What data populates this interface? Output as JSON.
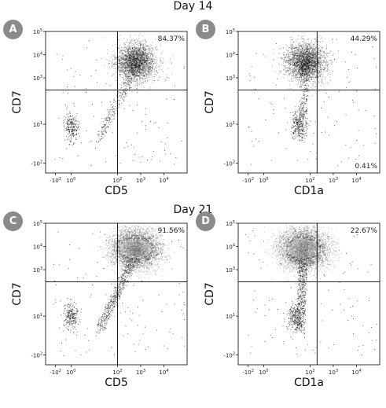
{
  "titles": {
    "day14": "Day 14",
    "day21": "Day 21"
  },
  "chart_data": [
    {
      "type": "scatter",
      "panel": "A",
      "xlabel": "CD5",
      "ylabel": "CD7",
      "axis_scale": "logicle",
      "x_ticks": [
        "-10^2",
        "10^0",
        "10^2",
        "10^3",
        "10^4"
      ],
      "y_ticks": [
        "10^5",
        "10^4",
        "10^3",
        "10^1",
        "-10^2"
      ],
      "gate": {
        "x": 100,
        "y": 300
      },
      "quadrant_labels": {
        "upper_right": "84.37%"
      },
      "populations": [
        {
          "cx": 600,
          "cy": 5000,
          "density": "high"
        },
        {
          "cx": 1,
          "cy": 8,
          "density": "low"
        }
      ]
    },
    {
      "type": "scatter",
      "panel": "B",
      "xlabel": "CD1a",
      "ylabel": "CD7",
      "axis_scale": "logicle",
      "x_ticks": [
        "-10^2",
        "10^0",
        "10^2",
        "10^3",
        "10^4"
      ],
      "y_ticks": [
        "10^5",
        "10^4",
        "10^3",
        "10^1",
        "-10^2"
      ],
      "gate": {
        "x": 200,
        "y": 300
      },
      "quadrant_labels": {
        "upper_right": "44.29%",
        "lower_right": "0.41%"
      },
      "populations": [
        {
          "cx": 60,
          "cy": 5000,
          "density": "high"
        },
        {
          "cx": 30,
          "cy": 10,
          "density": "low"
        }
      ]
    },
    {
      "type": "scatter",
      "panel": "C",
      "xlabel": "CD5",
      "ylabel": "CD7",
      "axis_scale": "logicle",
      "x_ticks": [
        "-10^2",
        "10^0",
        "10^2",
        "10^3",
        "10^4"
      ],
      "y_ticks": [
        "10^5",
        "10^4",
        "10^3",
        "10^1",
        "-10^2"
      ],
      "gate": {
        "x": 100,
        "y": 300
      },
      "quadrant_labels": {
        "upper_right": "91.56%"
      },
      "populations": [
        {
          "cx": 600,
          "cy": 8000,
          "density": "very high"
        },
        {
          "cx": 1,
          "cy": 10,
          "density": "low"
        }
      ]
    },
    {
      "type": "scatter",
      "panel": "D",
      "xlabel": "CD1a",
      "ylabel": "CD7",
      "axis_scale": "logicle",
      "x_ticks": [
        "-10^2",
        "10^0",
        "10^2",
        "10^3",
        "10^4"
      ],
      "y_ticks": [
        "10^5",
        "10^4",
        "10^3",
        "10^1",
        "-10^2"
      ],
      "gate": {
        "x": 200,
        "y": 300
      },
      "quadrant_labels": {
        "upper_right": "22.67%"
      },
      "populations": [
        {
          "cx": 50,
          "cy": 8000,
          "density": "very high"
        },
        {
          "cx": 20,
          "cy": 10,
          "density": "low"
        }
      ]
    }
  ]
}
